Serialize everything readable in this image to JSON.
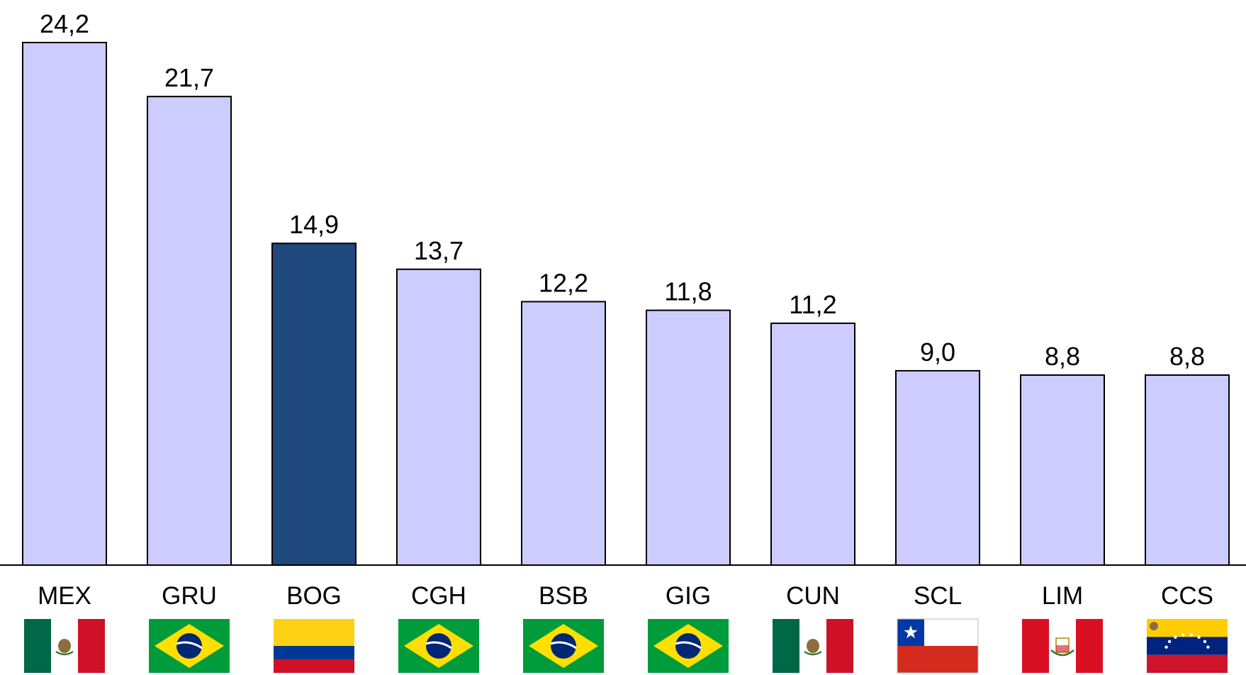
{
  "chart_data": {
    "type": "bar",
    "title": "",
    "xlabel": "",
    "ylabel": "",
    "ylim": [
      0,
      24.2
    ],
    "grid": false,
    "legend": "none",
    "categories": [
      "MEX",
      "GRU",
      "BOG",
      "CGH",
      "BSB",
      "GIG",
      "CUN",
      "SCL",
      "LIM",
      "CCS"
    ],
    "values": [
      24.2,
      21.7,
      14.9,
      13.7,
      12.2,
      11.8,
      11.2,
      9.0,
      8.8,
      8.8
    ],
    "value_labels": [
      "24,2",
      "21,7",
      "14,9",
      "13,7",
      "12,2",
      "11,8",
      "11,2",
      "9,0",
      "8,8",
      "8,8"
    ],
    "flags": [
      "mexico",
      "brazil",
      "colombia",
      "brazil",
      "brazil",
      "brazil",
      "mexico",
      "chile",
      "peru",
      "venezuela"
    ],
    "highlight_index": 2,
    "colors": {
      "bar": "#ccccff",
      "highlight": "#1f497d",
      "bar_stroke": "#000000",
      "axis": "#000000"
    }
  }
}
